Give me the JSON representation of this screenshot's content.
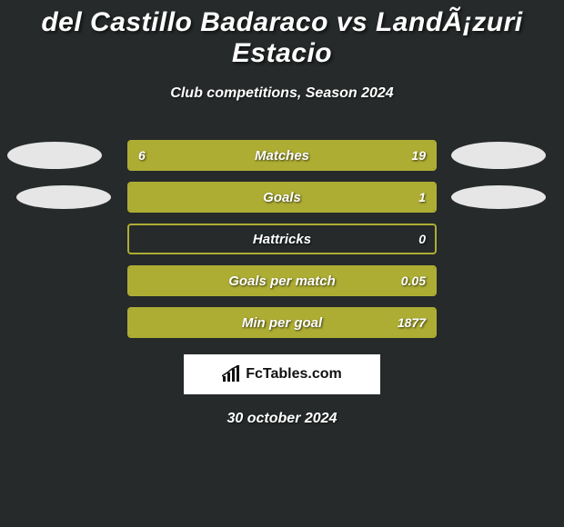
{
  "title": "del Castillo Badaraco vs LandÃ¡zuri Estacio",
  "subtitle": "Club competitions, Season 2024",
  "footer_date": "30 october 2024",
  "brand": {
    "text": "FcTables.com"
  },
  "colors": {
    "left_fill": "#adad34",
    "right_fill": "#adad34",
    "border": "#adad34",
    "background": "#262a2a",
    "oval": "#e6e6e6",
    "brand_bg": "#ffffff",
    "brand_text": "#111111"
  },
  "rows": [
    {
      "label": "Matches",
      "left_val": "6",
      "right_val": "19",
      "left_pct": 24,
      "right_pct": 76,
      "show_left_oval": true,
      "show_right_oval": true,
      "oval_class_left": "left",
      "oval_class_right": "right"
    },
    {
      "label": "Goals",
      "left_val": "",
      "right_val": "1",
      "left_pct": 0,
      "right_pct": 100,
      "show_left_oval": true,
      "show_right_oval": true,
      "oval_class_left": "r2l",
      "oval_class_right": "r2r"
    },
    {
      "label": "Hattricks",
      "left_val": "",
      "right_val": "0",
      "left_pct": 0,
      "right_pct": 0,
      "show_left_oval": false,
      "show_right_oval": false
    },
    {
      "label": "Goals per match",
      "left_val": "",
      "right_val": "0.05",
      "left_pct": 0,
      "right_pct": 100,
      "show_left_oval": false,
      "show_right_oval": false
    },
    {
      "label": "Min per goal",
      "left_val": "",
      "right_val": "1877",
      "left_pct": 0,
      "right_pct": 100,
      "show_left_oval": false,
      "show_right_oval": false
    }
  ]
}
